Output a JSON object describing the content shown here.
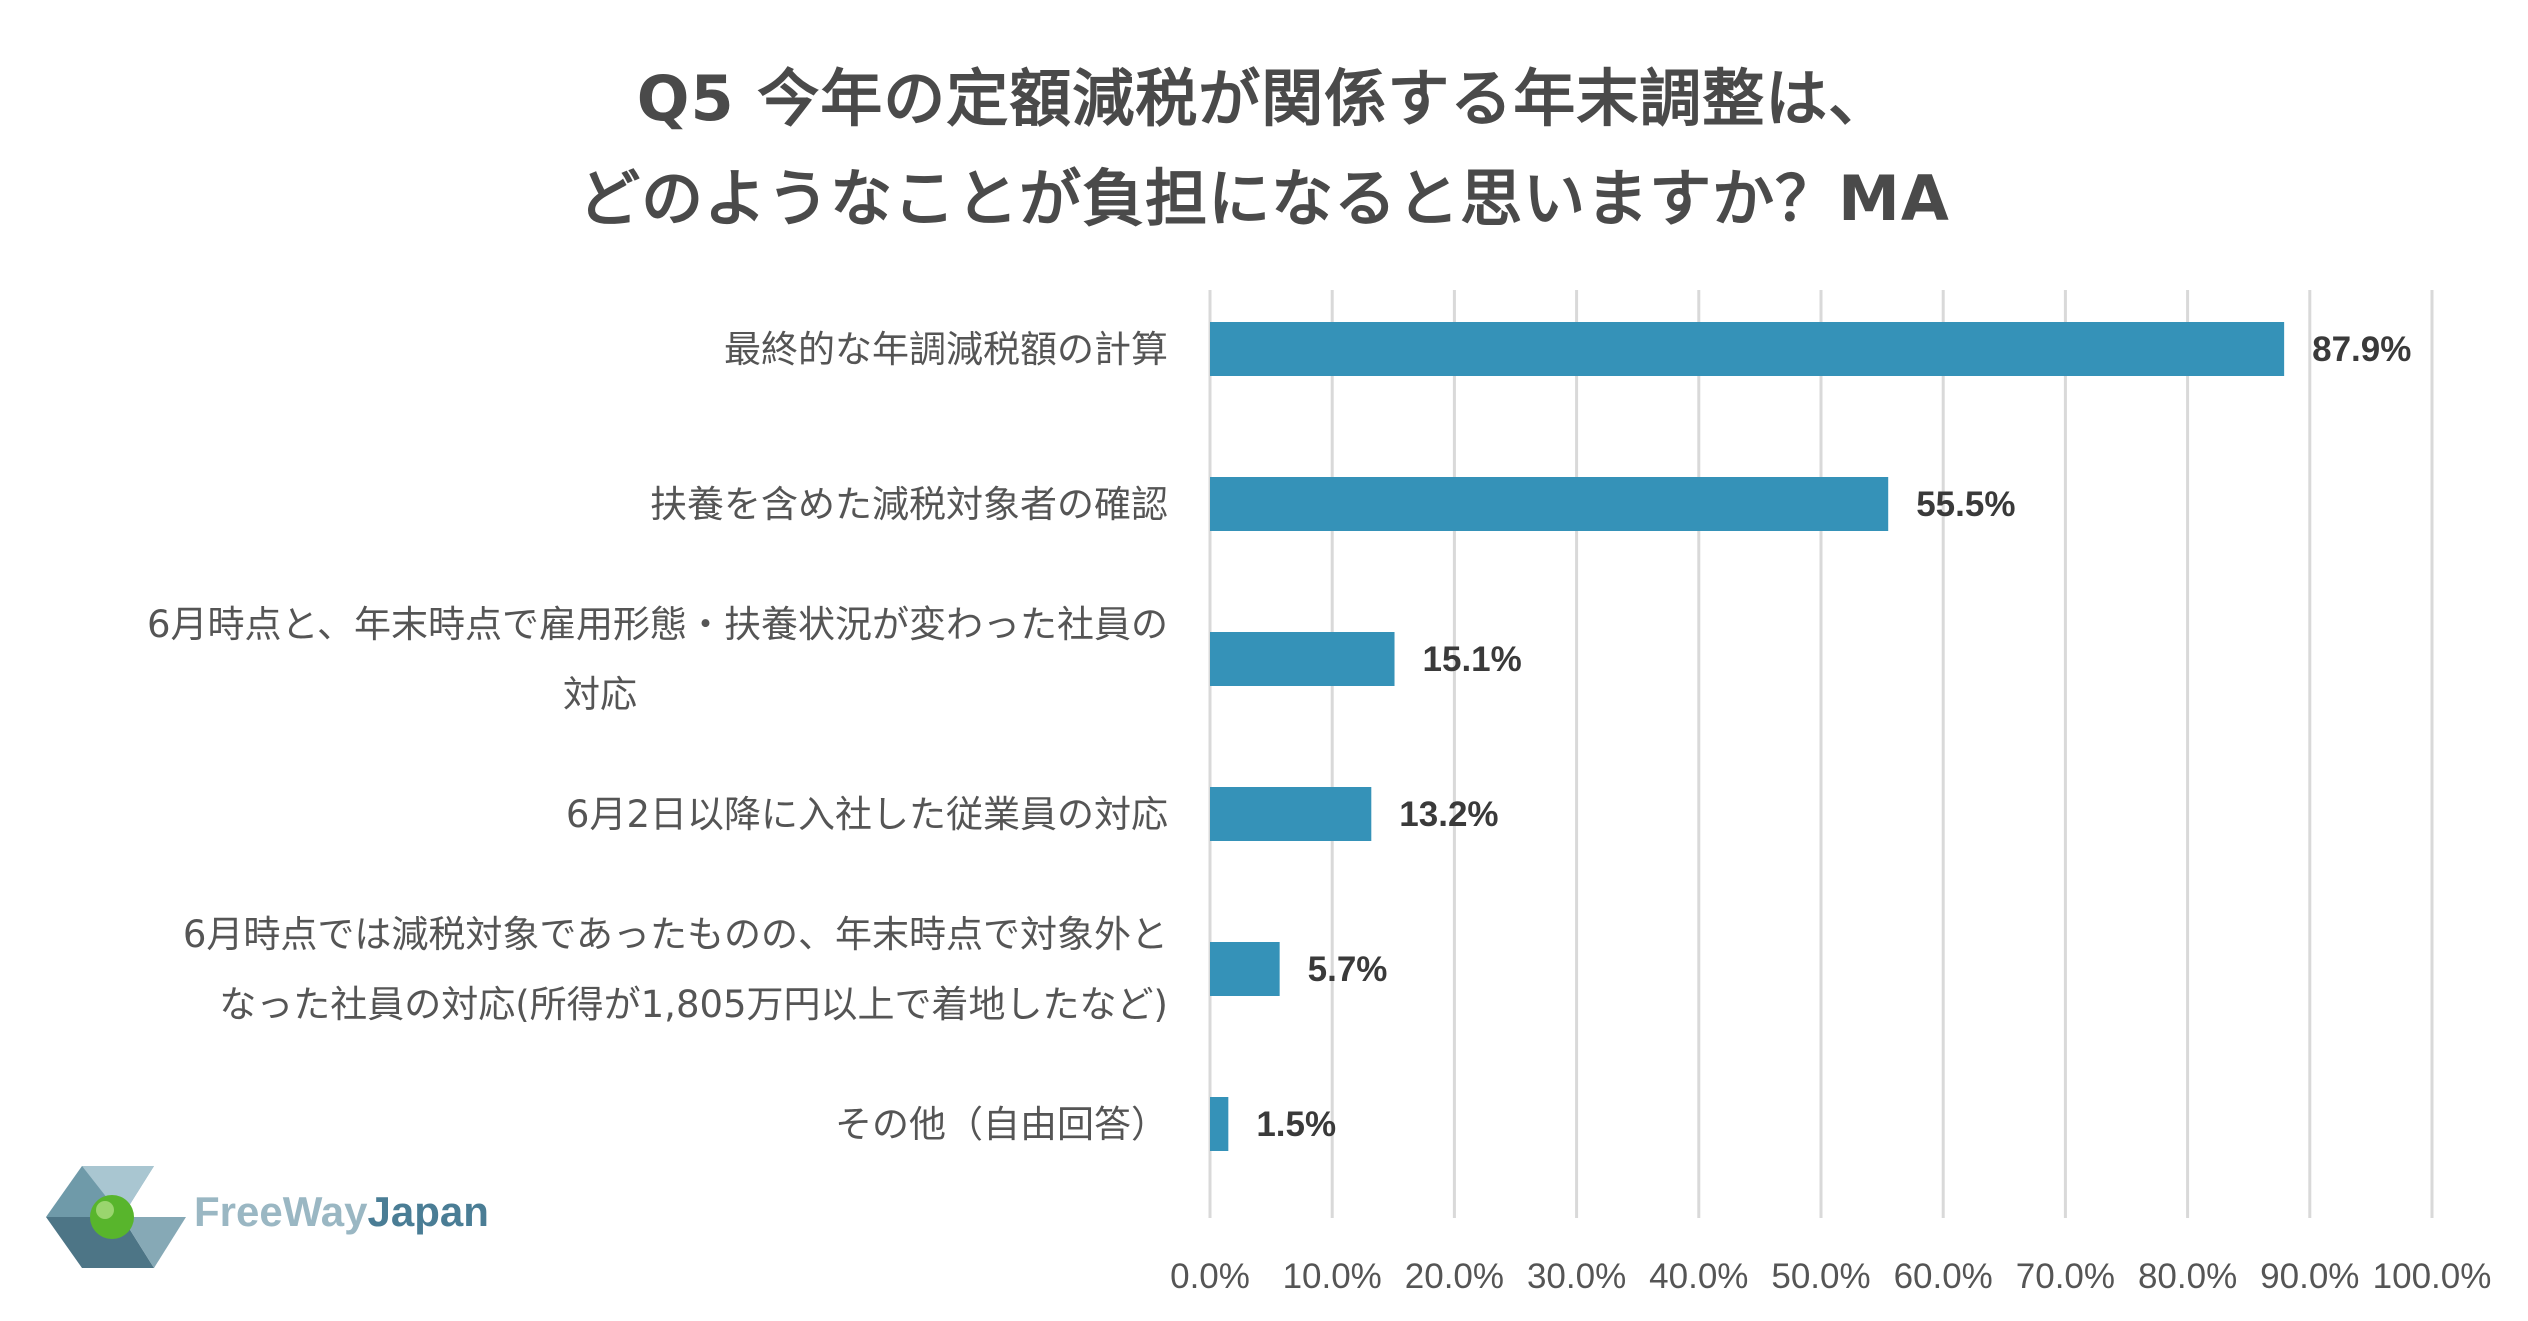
{
  "title": {
    "line1": "Q5 今年の定額減税が関係する年末調整は、",
    "line2": "どのようなことが負担になると思いますか？MA"
  },
  "colors": {
    "bar": "#3592b8",
    "grid": "#d9d9d9",
    "title": "#4a4a4a"
  },
  "chart_data": {
    "type": "bar",
    "orientation": "horizontal",
    "title": "Q5 今年の定額減税が関係する年末調整は、どのようなことが負担になると思いますか？MA",
    "categories": [
      [
        "最終的な年調減税額の計算"
      ],
      [
        "扶養を含めた減税対象者の確認"
      ],
      [
        "6月時点と、年末時点で雇用形態・扶養状況が変わった社員の",
        "対応"
      ],
      [
        "6月2日以降に入社した従業員の対応"
      ],
      [
        "6月時点では減税対象であったものの、年末時点で対象外と",
        "なった社員の対応(所得が1,805万円以上で着地したなど)"
      ],
      [
        "その他（自由回答）"
      ]
    ],
    "values": [
      87.9,
      55.5,
      15.1,
      13.2,
      5.7,
      1.5
    ],
    "value_labels": [
      "87.9%",
      "55.5%",
      "15.1%",
      "13.2%",
      "5.7%",
      "1.5%"
    ],
    "xlim": [
      0,
      100
    ],
    "xticks": [
      0,
      10,
      20,
      30,
      40,
      50,
      60,
      70,
      80,
      90,
      100
    ],
    "xtick_labels": [
      "0.0%",
      "10.0%",
      "20.0%",
      "30.0%",
      "40.0%",
      "50.0%",
      "60.0%",
      "70.0%",
      "80.0%",
      "90.0%",
      "100.0%"
    ],
    "grid": true,
    "legend": "none"
  },
  "logo": {
    "text_part1": "FreeWay",
    "text_part2": "Japan",
    "icon": "freeway-japan-logo-icon"
  }
}
